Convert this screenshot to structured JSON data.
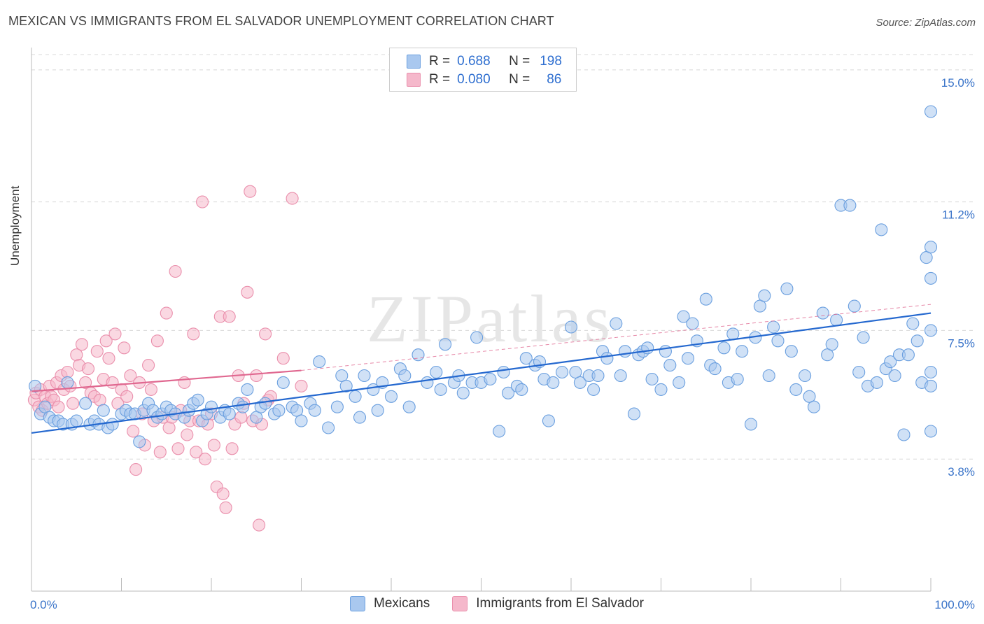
{
  "header": {
    "title": "MEXICAN VS IMMIGRANTS FROM EL SALVADOR UNEMPLOYMENT CORRELATION CHART",
    "source": "Source: ZipAtlas.com"
  },
  "watermark": "ZIPatlas",
  "legend": {
    "rows": [
      {
        "r_label": "R =",
        "r_value": "0.688",
        "n_label": "N =",
        "n_value": "198"
      },
      {
        "r_label": "R =",
        "r_value": "0.080",
        "n_label": "N =",
        "n_value": "86"
      }
    ]
  },
  "bottom_legend": [
    "Mexicans",
    "Immigrants from El Salvador"
  ],
  "colors": {
    "blue_fill": "#a9c8ef",
    "blue_stroke": "#6a9fdf",
    "blue_line": "#2468cf",
    "pink_fill": "#f5b8cb",
    "pink_stroke": "#ea8fac",
    "pink_line": "#e06890",
    "axis_text": "#3a74c9",
    "grid": "#d8d8d8"
  },
  "chart_data": {
    "type": "scatter",
    "title": "MEXICAN VS IMMIGRANTS FROM EL SALVADOR UNEMPLOYMENT CORRELATION CHART",
    "xlabel": "",
    "ylabel": "Unemployment",
    "xlim": [
      0,
      100
    ],
    "ylim": [
      0,
      15.5
    ],
    "x_tick_labels": [
      "0.0%",
      "100.0%"
    ],
    "y_ticks": [
      3.8,
      7.5,
      11.2,
      15.0
    ],
    "y_tick_labels": [
      "3.8%",
      "7.5%",
      "11.2%",
      "15.0%"
    ],
    "grid": true,
    "series": [
      {
        "name": "Mexicans",
        "r": 0.688,
        "n": 198,
        "trend": {
          "x": [
            0,
            100
          ],
          "y": [
            4.55,
            8.0
          ]
        },
        "points": [
          [
            0.4,
            5.9
          ],
          [
            1,
            5.1
          ],
          [
            1.5,
            5.3
          ],
          [
            2,
            5.0
          ],
          [
            2.5,
            4.9
          ],
          [
            3,
            4.9
          ],
          [
            3.5,
            4.8
          ],
          [
            4,
            6.0
          ],
          [
            4.5,
            4.8
          ],
          [
            5,
            4.9
          ],
          [
            6,
            5.4
          ],
          [
            6.5,
            4.8
          ],
          [
            7,
            4.9
          ],
          [
            7.5,
            4.8
          ],
          [
            8,
            5.2
          ],
          [
            8.5,
            4.7
          ],
          [
            9,
            4.8
          ],
          [
            10,
            5.1
          ],
          [
            10.5,
            5.2
          ],
          [
            11,
            5.1
          ],
          [
            11.5,
            5.1
          ],
          [
            12,
            4.3
          ],
          [
            12.5,
            5.2
          ],
          [
            13,
            5.4
          ],
          [
            13.5,
            5.2
          ],
          [
            14,
            5.0
          ],
          [
            14.5,
            5.1
          ],
          [
            15,
            5.3
          ],
          [
            15.5,
            5.2
          ],
          [
            16,
            5.1
          ],
          [
            17,
            5.0
          ],
          [
            17.5,
            5.2
          ],
          [
            18,
            5.4
          ],
          [
            18.5,
            5.5
          ],
          [
            19,
            4.9
          ],
          [
            19.5,
            5.1
          ],
          [
            20,
            5.3
          ],
          [
            21,
            5.0
          ],
          [
            21.5,
            5.2
          ],
          [
            22,
            5.1
          ],
          [
            23,
            5.4
          ],
          [
            23.5,
            5.3
          ],
          [
            24,
            5.8
          ],
          [
            25,
            5.0
          ],
          [
            25.5,
            5.3
          ],
          [
            26,
            5.4
          ],
          [
            27,
            5.1
          ],
          [
            27.5,
            5.2
          ],
          [
            28,
            6.0
          ],
          [
            29,
            5.3
          ],
          [
            29.5,
            5.2
          ],
          [
            30,
            4.9
          ],
          [
            31,
            5.4
          ],
          [
            31.5,
            5.2
          ],
          [
            32,
            6.6
          ],
          [
            33,
            4.7
          ],
          [
            34,
            5.3
          ],
          [
            34.5,
            6.2
          ],
          [
            35,
            5.9
          ],
          [
            36,
            5.6
          ],
          [
            36.5,
            5.0
          ],
          [
            37,
            6.2
          ],
          [
            38,
            5.8
          ],
          [
            38.5,
            5.2
          ],
          [
            39,
            6.0
          ],
          [
            40,
            5.6
          ],
          [
            41,
            6.4
          ],
          [
            41.5,
            6.2
          ],
          [
            42,
            5.3
          ],
          [
            43,
            6.8
          ],
          [
            44,
            6.0
          ],
          [
            45,
            6.3
          ],
          [
            45.5,
            5.8
          ],
          [
            46,
            7.1
          ],
          [
            47,
            6.0
          ],
          [
            47.5,
            6.2
          ],
          [
            48,
            5.7
          ],
          [
            49,
            6.0
          ],
          [
            49.5,
            7.3
          ],
          [
            50,
            6.0
          ],
          [
            51,
            6.1
          ],
          [
            52,
            4.6
          ],
          [
            52.5,
            6.3
          ],
          [
            53,
            5.7
          ],
          [
            54,
            5.9
          ],
          [
            54.5,
            5.8
          ],
          [
            55,
            6.7
          ],
          [
            56,
            6.5
          ],
          [
            56.5,
            6.6
          ],
          [
            57,
            6.1
          ],
          [
            57.5,
            4.9
          ],
          [
            58,
            6.0
          ],
          [
            59,
            6.3
          ],
          [
            60,
            7.6
          ],
          [
            60.5,
            6.3
          ],
          [
            61,
            6.0
          ],
          [
            62,
            6.2
          ],
          [
            62.5,
            5.8
          ],
          [
            63,
            6.2
          ],
          [
            63.5,
            6.9
          ],
          [
            64,
            6.7
          ],
          [
            65,
            7.7
          ],
          [
            65.5,
            6.2
          ],
          [
            66,
            6.9
          ],
          [
            67,
            5.1
          ],
          [
            67.5,
            6.8
          ],
          [
            68,
            6.9
          ],
          [
            68.5,
            7.0
          ],
          [
            69,
            6.1
          ],
          [
            70,
            5.8
          ],
          [
            70.5,
            6.9
          ],
          [
            71,
            6.5
          ],
          [
            72,
            6.0
          ],
          [
            72.5,
            7.9
          ],
          [
            73,
            6.7
          ],
          [
            73.5,
            7.7
          ],
          [
            74,
            7.2
          ],
          [
            75,
            8.4
          ],
          [
            75.5,
            6.5
          ],
          [
            76,
            6.4
          ],
          [
            77,
            7.0
          ],
          [
            77.5,
            6.0
          ],
          [
            78,
            7.4
          ],
          [
            78.5,
            6.1
          ],
          [
            79,
            6.9
          ],
          [
            80,
            4.8
          ],
          [
            80.5,
            7.3
          ],
          [
            81,
            8.2
          ],
          [
            81.5,
            8.5
          ],
          [
            82,
            6.2
          ],
          [
            82.5,
            7.6
          ],
          [
            83,
            7.2
          ],
          [
            84,
            8.7
          ],
          [
            84.5,
            6.9
          ],
          [
            85,
            5.8
          ],
          [
            86,
            6.2
          ],
          [
            86.5,
            5.6
          ],
          [
            87,
            5.3
          ],
          [
            88,
            8.0
          ],
          [
            88.5,
            6.8
          ],
          [
            89,
            7.1
          ],
          [
            89.5,
            7.8
          ],
          [
            90,
            11.1
          ],
          [
            91,
            11.1
          ],
          [
            91.5,
            8.2
          ],
          [
            92,
            6.3
          ],
          [
            92.5,
            7.3
          ],
          [
            93,
            5.9
          ],
          [
            94,
            6.0
          ],
          [
            94.5,
            10.4
          ],
          [
            95,
            6.4
          ],
          [
            95.5,
            6.6
          ],
          [
            96,
            6.2
          ],
          [
            96.5,
            6.8
          ],
          [
            97,
            4.5
          ],
          [
            97.5,
            6.8
          ],
          [
            98,
            7.7
          ],
          [
            98.5,
            7.2
          ],
          [
            99,
            6.0
          ],
          [
            99.5,
            9.6
          ],
          [
            100,
            5.9
          ],
          [
            100,
            9.9
          ],
          [
            100,
            13.8
          ],
          [
            100,
            4.6
          ],
          [
            100,
            6.3
          ],
          [
            100,
            9.0
          ],
          [
            100,
            7.5
          ]
        ]
      },
      {
        "name": "Immigrants from El Salvador",
        "r": 0.08,
        "n": 86,
        "trend": {
          "x": [
            0,
            30
          ],
          "y": [
            5.75,
            6.35
          ]
        },
        "points": [
          [
            0.3,
            5.5
          ],
          [
            0.5,
            5.7
          ],
          [
            0.8,
            5.3
          ],
          [
            1,
            5.8
          ],
          [
            1.2,
            5.2
          ],
          [
            1.5,
            5.6
          ],
          [
            1.8,
            5.4
          ],
          [
            2,
            5.9
          ],
          [
            2.2,
            5.6
          ],
          [
            2.5,
            5.5
          ],
          [
            2.8,
            6.0
          ],
          [
            3,
            5.3
          ],
          [
            3.3,
            6.2
          ],
          [
            3.6,
            5.8
          ],
          [
            4,
            6.3
          ],
          [
            4.3,
            5.9
          ],
          [
            4.6,
            5.4
          ],
          [
            5,
            6.8
          ],
          [
            5.3,
            6.5
          ],
          [
            5.6,
            7.1
          ],
          [
            6,
            6.0
          ],
          [
            6.3,
            6.4
          ],
          [
            6.6,
            5.7
          ],
          [
            7,
            5.6
          ],
          [
            7.3,
            6.9
          ],
          [
            7.6,
            5.5
          ],
          [
            8,
            6.1
          ],
          [
            8.3,
            7.2
          ],
          [
            8.6,
            6.7
          ],
          [
            9,
            6.0
          ],
          [
            9.3,
            7.4
          ],
          [
            9.6,
            5.4
          ],
          [
            10,
            5.8
          ],
          [
            10.3,
            7.0
          ],
          [
            10.6,
            5.6
          ],
          [
            11,
            6.2
          ],
          [
            11.3,
            4.6
          ],
          [
            11.6,
            3.5
          ],
          [
            12,
            6.0
          ],
          [
            12.3,
            5.1
          ],
          [
            12.6,
            4.2
          ],
          [
            13,
            6.5
          ],
          [
            13.3,
            5.8
          ],
          [
            13.6,
            4.9
          ],
          [
            14,
            7.2
          ],
          [
            14.3,
            4.0
          ],
          [
            14.6,
            5.0
          ],
          [
            15,
            8.0
          ],
          [
            15.3,
            4.7
          ],
          [
            15.6,
            5.0
          ],
          [
            16,
            9.2
          ],
          [
            16.3,
            4.1
          ],
          [
            16.6,
            5.2
          ],
          [
            17,
            6.0
          ],
          [
            17.3,
            4.5
          ],
          [
            17.6,
            4.9
          ],
          [
            18,
            7.4
          ],
          [
            18.3,
            4.0
          ],
          [
            18.6,
            4.9
          ],
          [
            19,
            11.2
          ],
          [
            19.3,
            3.8
          ],
          [
            19.6,
            4.8
          ],
          [
            20,
            5.1
          ],
          [
            20.3,
            4.2
          ],
          [
            20.6,
            3.0
          ],
          [
            21,
            7.9
          ],
          [
            21.3,
            2.8
          ],
          [
            21.6,
            2.4
          ],
          [
            22,
            7.9
          ],
          [
            22.3,
            4.1
          ],
          [
            22.6,
            4.8
          ],
          [
            23,
            6.2
          ],
          [
            23.3,
            5.0
          ],
          [
            23.6,
            5.4
          ],
          [
            24,
            8.6
          ],
          [
            24.3,
            11.5
          ],
          [
            24.6,
            4.9
          ],
          [
            25,
            6.2
          ],
          [
            25.3,
            1.9
          ],
          [
            25.6,
            4.8
          ],
          [
            26,
            7.4
          ],
          [
            26.3,
            5.5
          ],
          [
            26.6,
            5.6
          ],
          [
            28,
            6.7
          ],
          [
            29,
            11.3
          ],
          [
            30,
            5.9
          ]
        ]
      }
    ]
  }
}
